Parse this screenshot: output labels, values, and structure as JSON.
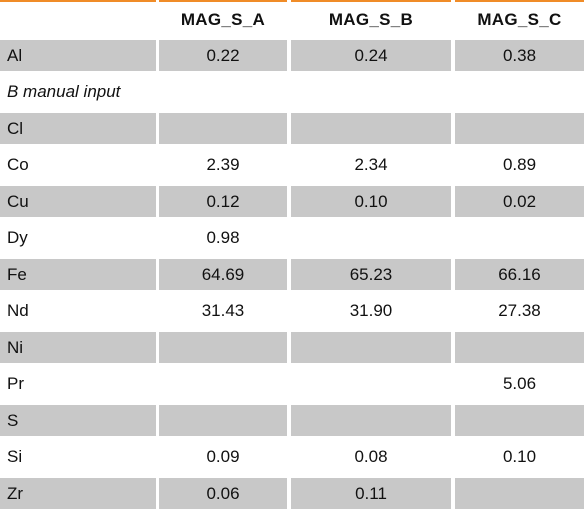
{
  "header": {
    "corner": "",
    "columns": [
      "MAG_S_A",
      "MAG_S_B",
      "MAG_S_C"
    ]
  },
  "rows": [
    {
      "label": "Al",
      "values": [
        "0.22",
        "0.24",
        "0.38"
      ]
    },
    {
      "note": "B manual input"
    },
    {
      "label": "Cl",
      "values": [
        "",
        "",
        ""
      ]
    },
    {
      "label": "Co",
      "values": [
        "2.39",
        "2.34",
        "0.89"
      ]
    },
    {
      "label": "Cu",
      "values": [
        "0.12",
        "0.10",
        "0.02"
      ]
    },
    {
      "label": "Dy",
      "values": [
        "0.98",
        "",
        ""
      ]
    },
    {
      "label": "Fe",
      "values": [
        "64.69",
        "65.23",
        "66.16"
      ]
    },
    {
      "label": "Nd",
      "values": [
        "31.43",
        "31.90",
        "27.38"
      ]
    },
    {
      "label": "Ni",
      "values": [
        "",
        "",
        ""
      ]
    },
    {
      "label": "Pr",
      "values": [
        "",
        "",
        "5.06"
      ]
    },
    {
      "label": "S",
      "values": [
        "",
        "",
        ""
      ]
    },
    {
      "label": "Si",
      "values": [
        "0.09",
        "0.08",
        "0.10"
      ]
    },
    {
      "label": "Zr",
      "values": [
        "0.06",
        "0.11",
        ""
      ]
    }
  ],
  "colors": {
    "header_rule": "#f08c28",
    "shaded_row": "#c8c8c8"
  }
}
